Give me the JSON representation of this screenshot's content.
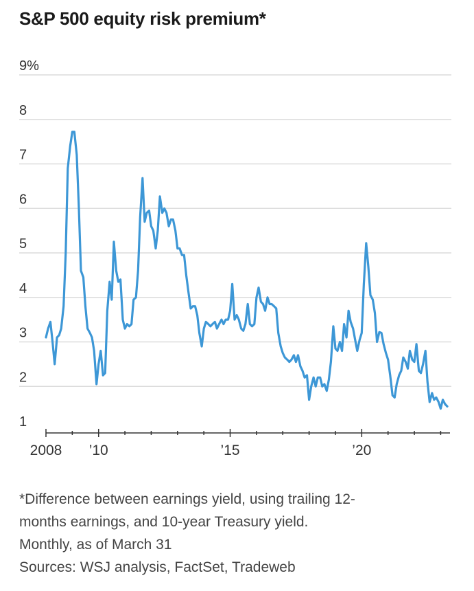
{
  "title": "S&P 500 equity risk premium*",
  "footnote_lines": [
    "*Difference between earnings yield, using trailing 12-",
    "months earnings, and 10-year Treasury yield.",
    "Monthly, as of March 31"
  ],
  "sources": "Sources: WSJ analysis, FactSet, Tradeweb",
  "colors": {
    "line": "#3d97d6",
    "grid": "#dcdcdc",
    "axis": "#333333",
    "text": "#333333"
  },
  "chart_data": {
    "type": "line",
    "title": "S&P 500 equity risk premium*",
    "ylim": [
      1,
      9
    ],
    "xlim": [
      2008.0,
      2023.25
    ],
    "y_ticks": [
      {
        "value": 9,
        "label": "9%"
      },
      {
        "value": 8,
        "label": "8"
      },
      {
        "value": 7,
        "label": "7"
      },
      {
        "value": 6,
        "label": "6"
      },
      {
        "value": 5,
        "label": "5"
      },
      {
        "value": 4,
        "label": "4"
      },
      {
        "value": 3,
        "label": "3"
      },
      {
        "value": 2,
        "label": "2"
      },
      {
        "value": 1,
        "label": "1"
      }
    ],
    "x_ticks_minor": [
      2009,
      2011,
      2012,
      2013,
      2014,
      2016,
      2017,
      2018,
      2019,
      2021,
      2022,
      2023
    ],
    "x_ticks_major": [
      {
        "value": 2008,
        "label": "2008"
      },
      {
        "value": 2010,
        "label": "’10"
      },
      {
        "value": 2015,
        "label": "’15"
      },
      {
        "value": 2020,
        "label": "’20"
      }
    ],
    "grid": true,
    "series": [
      {
        "name": "",
        "points": [
          [
            2008.0,
            3.1
          ],
          [
            2008.08,
            3.3
          ],
          [
            2008.17,
            3.45
          ],
          [
            2008.25,
            3.0
          ],
          [
            2008.33,
            2.5
          ],
          [
            2008.42,
            3.1
          ],
          [
            2008.5,
            3.15
          ],
          [
            2008.58,
            3.3
          ],
          [
            2008.67,
            3.8
          ],
          [
            2008.75,
            5.0
          ],
          [
            2008.83,
            6.9
          ],
          [
            2008.92,
            7.4
          ],
          [
            2009.0,
            7.72
          ],
          [
            2009.08,
            7.72
          ],
          [
            2009.17,
            7.2
          ],
          [
            2009.25,
            6.0
          ],
          [
            2009.33,
            4.6
          ],
          [
            2009.42,
            4.45
          ],
          [
            2009.5,
            3.8
          ],
          [
            2009.58,
            3.3
          ],
          [
            2009.67,
            3.2
          ],
          [
            2009.75,
            3.1
          ],
          [
            2009.83,
            2.8
          ],
          [
            2009.92,
            2.05
          ],
          [
            2010.0,
            2.5
          ],
          [
            2010.08,
            2.8
          ],
          [
            2010.17,
            2.25
          ],
          [
            2010.25,
            2.3
          ],
          [
            2010.33,
            3.7
          ],
          [
            2010.42,
            4.35
          ],
          [
            2010.5,
            3.95
          ],
          [
            2010.58,
            5.25
          ],
          [
            2010.67,
            4.6
          ],
          [
            2010.75,
            4.35
          ],
          [
            2010.83,
            4.4
          ],
          [
            2010.92,
            3.5
          ],
          [
            2011.0,
            3.3
          ],
          [
            2011.08,
            3.4
          ],
          [
            2011.17,
            3.35
          ],
          [
            2011.25,
            3.4
          ],
          [
            2011.33,
            3.95
          ],
          [
            2011.42,
            4.0
          ],
          [
            2011.5,
            4.6
          ],
          [
            2011.58,
            5.8
          ],
          [
            2011.67,
            6.68
          ],
          [
            2011.75,
            5.7
          ],
          [
            2011.83,
            5.9
          ],
          [
            2011.92,
            5.95
          ],
          [
            2012.0,
            5.6
          ],
          [
            2012.08,
            5.5
          ],
          [
            2012.17,
            5.1
          ],
          [
            2012.25,
            5.5
          ],
          [
            2012.33,
            6.27
          ],
          [
            2012.42,
            5.9
          ],
          [
            2012.5,
            6.0
          ],
          [
            2012.58,
            5.9
          ],
          [
            2012.67,
            5.6
          ],
          [
            2012.75,
            5.75
          ],
          [
            2012.83,
            5.75
          ],
          [
            2012.92,
            5.5
          ],
          [
            2013.0,
            5.1
          ],
          [
            2013.08,
            5.1
          ],
          [
            2013.17,
            4.95
          ],
          [
            2013.25,
            4.95
          ],
          [
            2013.33,
            4.5
          ],
          [
            2013.42,
            4.1
          ],
          [
            2013.5,
            3.75
          ],
          [
            2013.58,
            3.8
          ],
          [
            2013.67,
            3.8
          ],
          [
            2013.75,
            3.6
          ],
          [
            2013.83,
            3.2
          ],
          [
            2013.92,
            2.9
          ],
          [
            2014.0,
            3.3
          ],
          [
            2014.08,
            3.45
          ],
          [
            2014.17,
            3.4
          ],
          [
            2014.25,
            3.35
          ],
          [
            2014.33,
            3.4
          ],
          [
            2014.42,
            3.45
          ],
          [
            2014.5,
            3.3
          ],
          [
            2014.58,
            3.4
          ],
          [
            2014.67,
            3.5
          ],
          [
            2014.75,
            3.4
          ],
          [
            2014.83,
            3.5
          ],
          [
            2014.92,
            3.5
          ],
          [
            2015.0,
            3.7
          ],
          [
            2015.08,
            4.3
          ],
          [
            2015.17,
            3.5
          ],
          [
            2015.25,
            3.6
          ],
          [
            2015.33,
            3.5
          ],
          [
            2015.42,
            3.3
          ],
          [
            2015.5,
            3.25
          ],
          [
            2015.58,
            3.4
          ],
          [
            2015.67,
            3.85
          ],
          [
            2015.75,
            3.4
          ],
          [
            2015.83,
            3.35
          ],
          [
            2015.92,
            3.4
          ],
          [
            2016.0,
            4.0
          ],
          [
            2016.08,
            4.22
          ],
          [
            2016.17,
            3.9
          ],
          [
            2016.25,
            3.85
          ],
          [
            2016.33,
            3.7
          ],
          [
            2016.42,
            4.0
          ],
          [
            2016.5,
            3.85
          ],
          [
            2016.58,
            3.85
          ],
          [
            2016.67,
            3.8
          ],
          [
            2016.75,
            3.75
          ],
          [
            2016.83,
            3.2
          ],
          [
            2016.92,
            2.9
          ],
          [
            2017.0,
            2.75
          ],
          [
            2017.08,
            2.65
          ],
          [
            2017.17,
            2.6
          ],
          [
            2017.25,
            2.55
          ],
          [
            2017.33,
            2.6
          ],
          [
            2017.42,
            2.7
          ],
          [
            2017.5,
            2.55
          ],
          [
            2017.58,
            2.7
          ],
          [
            2017.67,
            2.45
          ],
          [
            2017.75,
            2.35
          ],
          [
            2017.83,
            2.2
          ],
          [
            2017.92,
            2.25
          ],
          [
            2018.0,
            1.7
          ],
          [
            2018.08,
            2.0
          ],
          [
            2018.17,
            2.2
          ],
          [
            2018.25,
            2.0
          ],
          [
            2018.33,
            2.2
          ],
          [
            2018.42,
            2.2
          ],
          [
            2018.5,
            2.0
          ],
          [
            2018.58,
            2.05
          ],
          [
            2018.67,
            1.9
          ],
          [
            2018.75,
            2.15
          ],
          [
            2018.83,
            2.55
          ],
          [
            2018.92,
            3.35
          ],
          [
            2019.0,
            2.85
          ],
          [
            2019.08,
            2.8
          ],
          [
            2019.17,
            3.0
          ],
          [
            2019.25,
            2.8
          ],
          [
            2019.33,
            3.4
          ],
          [
            2019.42,
            3.1
          ],
          [
            2019.5,
            3.7
          ],
          [
            2019.58,
            3.45
          ],
          [
            2019.67,
            3.3
          ],
          [
            2019.75,
            3.05
          ],
          [
            2019.83,
            2.8
          ],
          [
            2019.92,
            3.05
          ],
          [
            2020.0,
            3.2
          ],
          [
            2020.08,
            4.3
          ],
          [
            2020.17,
            5.22
          ],
          [
            2020.25,
            4.7
          ],
          [
            2020.33,
            4.05
          ],
          [
            2020.42,
            3.95
          ],
          [
            2020.5,
            3.65
          ],
          [
            2020.58,
            3.0
          ],
          [
            2020.67,
            3.22
          ],
          [
            2020.75,
            3.2
          ],
          [
            2020.83,
            2.95
          ],
          [
            2020.92,
            2.75
          ],
          [
            2021.0,
            2.6
          ],
          [
            2021.08,
            2.25
          ],
          [
            2021.17,
            1.8
          ],
          [
            2021.25,
            1.75
          ],
          [
            2021.33,
            2.05
          ],
          [
            2021.42,
            2.25
          ],
          [
            2021.5,
            2.35
          ],
          [
            2021.58,
            2.65
          ],
          [
            2021.67,
            2.55
          ],
          [
            2021.75,
            2.4
          ],
          [
            2021.83,
            2.8
          ],
          [
            2021.92,
            2.6
          ],
          [
            2022.0,
            2.55
          ],
          [
            2022.08,
            2.95
          ],
          [
            2022.17,
            2.35
          ],
          [
            2022.25,
            2.3
          ],
          [
            2022.33,
            2.5
          ],
          [
            2022.42,
            2.8
          ],
          [
            2022.5,
            2.1
          ],
          [
            2022.58,
            1.65
          ],
          [
            2022.67,
            1.85
          ],
          [
            2022.75,
            1.7
          ],
          [
            2022.83,
            1.75
          ],
          [
            2022.92,
            1.65
          ],
          [
            2023.0,
            1.5
          ],
          [
            2023.08,
            1.7
          ],
          [
            2023.17,
            1.6
          ],
          [
            2023.25,
            1.55
          ]
        ]
      }
    ]
  }
}
